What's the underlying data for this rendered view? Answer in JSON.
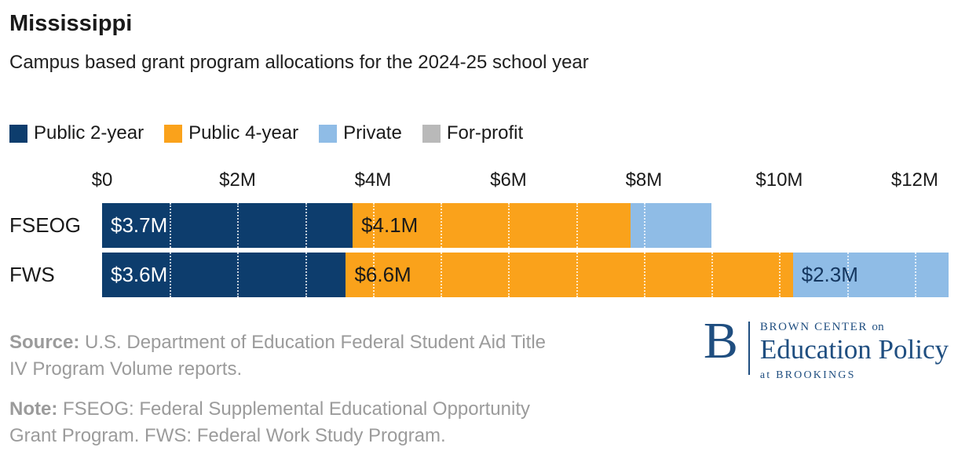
{
  "header": {
    "title": "Mississippi",
    "subtitle": "Campus based grant program allocations for the 2024-25 school year"
  },
  "legend": [
    {
      "label": "Public 2-year",
      "color": "#0d3d6d"
    },
    {
      "label": "Public 4-year",
      "color": "#faa21b"
    },
    {
      "label": "Private",
      "color": "#8fbce6"
    },
    {
      "label": "For-profit",
      "color": "#b9b9b9"
    }
  ],
  "chart_data": {
    "type": "bar",
    "orientation": "horizontal",
    "stacked": true,
    "title": "Mississippi — Campus based grant program allocations for the 2024-25 school year",
    "categories": [
      "FSEOG",
      "FWS"
    ],
    "series": [
      {
        "name": "Public 2-year",
        "color": "#0d3d6d",
        "label_color": "#ffffff",
        "values": [
          3.7,
          3.6
        ],
        "labels": [
          "$3.7M",
          "$3.6M"
        ]
      },
      {
        "name": "Public 4-year",
        "color": "#faa21b",
        "label_color": "#1a1a1a",
        "values": [
          4.1,
          6.6
        ],
        "labels": [
          "$4.1M",
          "$6.6M"
        ]
      },
      {
        "name": "Private",
        "color": "#8fbce6",
        "label_color": "#14365f",
        "values": [
          1.2,
          2.3
        ],
        "labels": [
          "",
          "$2.3M"
        ]
      },
      {
        "name": "For-profit",
        "color": "#b9b9b9",
        "label_color": "#1a1a1a",
        "values": [
          0,
          0
        ],
        "labels": [
          "",
          ""
        ]
      }
    ],
    "x_ticks": [
      "$0",
      "$2M",
      "$4M",
      "$6M",
      "$8M",
      "$10M",
      "$12M"
    ],
    "x_tick_values": [
      0,
      2,
      4,
      6,
      8,
      10,
      12
    ],
    "xlim": [
      0,
      12.5
    ],
    "unit": "millions USD",
    "gridlines_every": 1,
    "legend_position": "top"
  },
  "footer": {
    "source_label": "Source:",
    "source_text": "U.S. Department of Education Federal Student Aid Title IV Program Volume reports.",
    "note_label": "Note:",
    "note_text": "FSEOG: Federal Supplemental Educational Opportunity Grant Program. FWS: Federal Work Study Program."
  },
  "logo": {
    "initial": "B",
    "line1a": "BROWN CENTER",
    "line1b": "on",
    "line2": "Education Policy",
    "line3": "at BROOKINGS",
    "color": "#1f4e80"
  }
}
